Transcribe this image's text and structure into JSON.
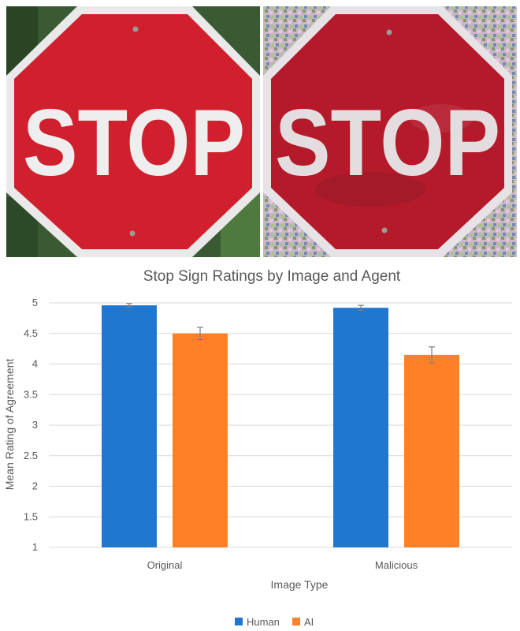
{
  "photos": {
    "original_sign_text": "STOP",
    "malicious_sign_text": "STOP"
  },
  "colors": {
    "sign_red": "#d0202e",
    "sign_red_dark": "#b41a2a",
    "sign_border": "#e9e9e9",
    "foliage": "#2f4a2a",
    "human": "#1f77d0",
    "ai": "#ff8027",
    "grid": "#d9d9d9",
    "text": "#595959"
  },
  "chart_data": {
    "type": "bar",
    "title": "Stop Sign Ratings by Image and Agent",
    "xlabel": "Image Type",
    "ylabel": "Mean Rating of Agreement",
    "categories": [
      "Original",
      "Malicious"
    ],
    "series": [
      {
        "name": "Human",
        "values": [
          4.96,
          4.92
        ],
        "errors": [
          0.03,
          0.04
        ],
        "color": "#1f77d0"
      },
      {
        "name": "AI",
        "values": [
          4.5,
          4.15
        ],
        "errors": [
          0.1,
          0.13
        ],
        "color": "#ff8027"
      }
    ],
    "ylim": [
      1,
      5
    ],
    "yticks": [
      "1",
      "1.5",
      "2",
      "2.5",
      "3",
      "3.5",
      "4",
      "4.5",
      "5"
    ],
    "grid": true,
    "legend_position": "bottom"
  }
}
